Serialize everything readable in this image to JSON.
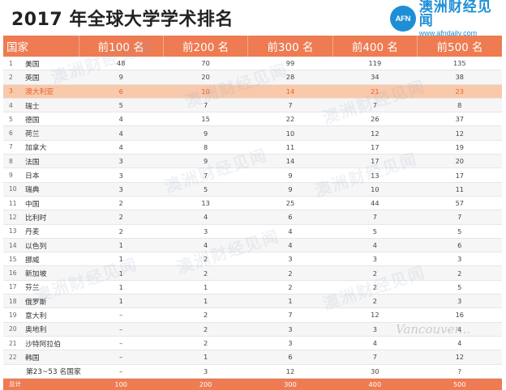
{
  "title": "2017 年全球大学学术排名",
  "brand": {
    "badge": "AFN",
    "name": "澳洲财经见闻",
    "url": "www.afndaily.com"
  },
  "credit": "Vancouver...",
  "columns": [
    "国家",
    "前100 名",
    "前200 名",
    "前300 名",
    "前400 名",
    "前500 名"
  ],
  "rows": [
    {
      "rank": "1",
      "country": "美国",
      "values": [
        "48",
        "70",
        "99",
        "119",
        "135"
      ]
    },
    {
      "rank": "2",
      "country": "英国",
      "values": [
        "9",
        "20",
        "28",
        "34",
        "38"
      ]
    },
    {
      "rank": "3",
      "country": "澳大利亚",
      "values": [
        "6",
        "10",
        "14",
        "21",
        "23"
      ]
    },
    {
      "rank": "4",
      "country": "瑞士",
      "values": [
        "5",
        "7",
        "7",
        "7",
        "8"
      ]
    },
    {
      "rank": "5",
      "country": "德国",
      "values": [
        "4",
        "15",
        "22",
        "26",
        "37"
      ]
    },
    {
      "rank": "6",
      "country": "荷兰",
      "values": [
        "4",
        "9",
        "10",
        "12",
        "12"
      ]
    },
    {
      "rank": "7",
      "country": "加拿大",
      "values": [
        "4",
        "8",
        "11",
        "17",
        "19"
      ]
    },
    {
      "rank": "8",
      "country": "法国",
      "values": [
        "3",
        "9",
        "14",
        "17",
        "20"
      ]
    },
    {
      "rank": "9",
      "country": "日本",
      "values": [
        "3",
        "7",
        "9",
        "13",
        "17"
      ]
    },
    {
      "rank": "10",
      "country": "瑞典",
      "values": [
        "3",
        "5",
        "9",
        "10",
        "11"
      ]
    },
    {
      "rank": "11",
      "country": "中国",
      "values": [
        "2",
        "13",
        "25",
        "44",
        "57"
      ]
    },
    {
      "rank": "12",
      "country": "比利时",
      "values": [
        "2",
        "4",
        "6",
        "7",
        "7"
      ]
    },
    {
      "rank": "13",
      "country": "丹麦",
      "values": [
        "2",
        "3",
        "4",
        "5",
        "5"
      ]
    },
    {
      "rank": "14",
      "country": "以色列",
      "values": [
        "1",
        "4",
        "4",
        "4",
        "6"
      ]
    },
    {
      "rank": "15",
      "country": "挪威",
      "values": [
        "1",
        "2",
        "3",
        "3",
        "3"
      ]
    },
    {
      "rank": "16",
      "country": "新加坡",
      "values": [
        "1",
        "2",
        "2",
        "2",
        "2"
      ]
    },
    {
      "rank": "17",
      "country": "芬兰",
      "values": [
        "1",
        "1",
        "2",
        "2",
        "5"
      ]
    },
    {
      "rank": "18",
      "country": "俄罗斯",
      "values": [
        "1",
        "1",
        "1",
        "2",
        "3"
      ]
    },
    {
      "rank": "19",
      "country": "意大利",
      "values": [
        "–",
        "2",
        "7",
        "12",
        "16"
      ]
    },
    {
      "rank": "20",
      "country": "奥地利",
      "values": [
        "–",
        "2",
        "3",
        "3",
        "4"
      ]
    },
    {
      "rank": "21",
      "country": "沙特阿拉伯",
      "values": [
        "–",
        "2",
        "3",
        "4",
        "4"
      ]
    },
    {
      "rank": "22",
      "country": "韩国",
      "values": [
        "–",
        "1",
        "6",
        "7",
        "12"
      ]
    },
    {
      "rank": "",
      "country": "第23~53 名国家",
      "values": [
        "–",
        "3",
        "12",
        "30",
        "?"
      ]
    }
  ],
  "total": {
    "label": "总计",
    "values": [
      "100",
      "200",
      "300",
      "400",
      "500"
    ]
  },
  "watermark": "澳洲财经见闻",
  "colors": {
    "header": "#ee7b52",
    "highlight": "#f9c9ab",
    "highlight_text": "#e8602a",
    "brand": "#1e8fd6"
  }
}
